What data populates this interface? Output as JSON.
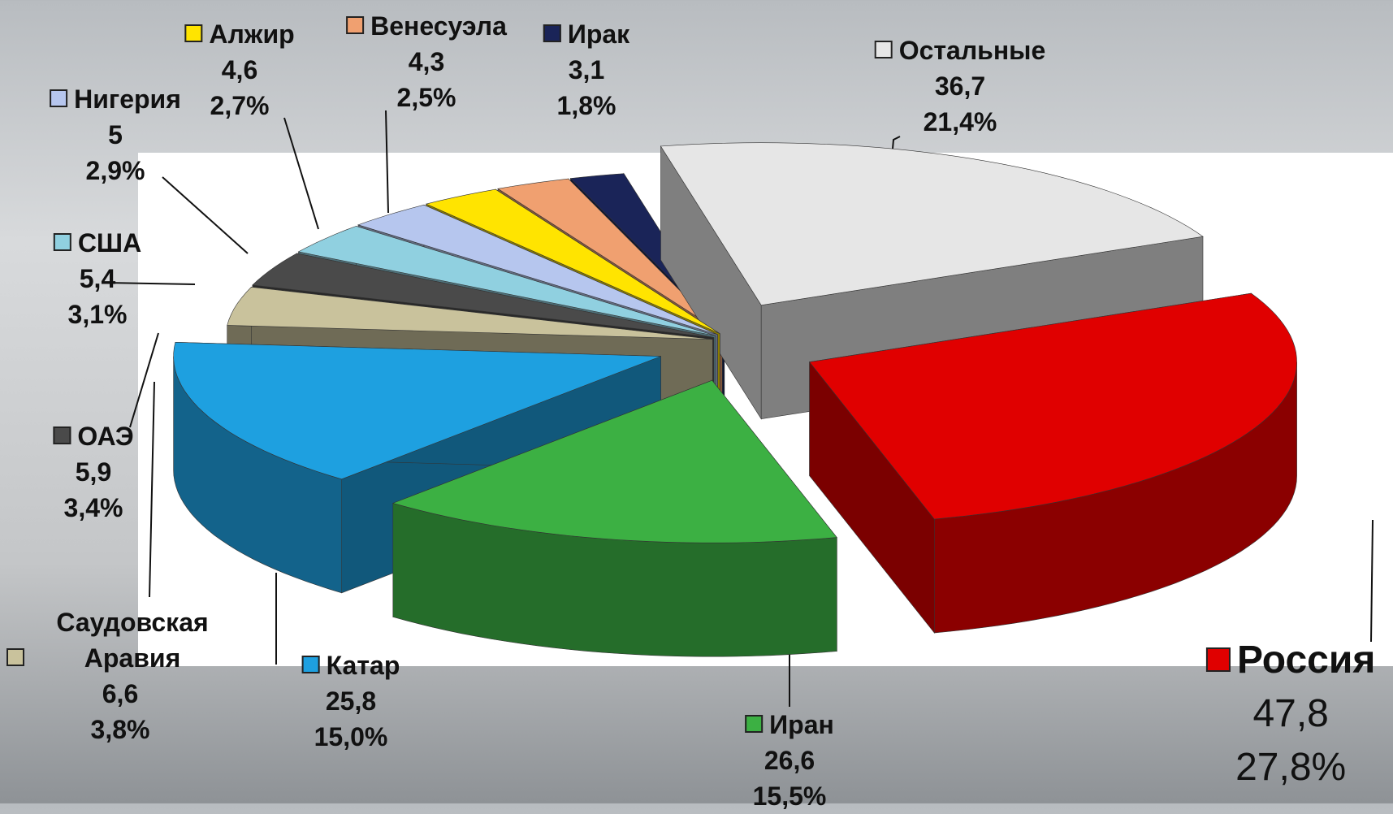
{
  "chart_data": {
    "type": "pie",
    "categories": [
      "Россия",
      "Иран",
      "Катар",
      "Саудовская Аравия",
      "ОАЭ",
      "США",
      "Нигерия",
      "Алжир",
      "Венесуэла",
      "Ирак",
      "Остальные"
    ],
    "values": [
      47.8,
      26.6,
      25.8,
      6.6,
      5.9,
      5.4,
      5,
      4.6,
      4.3,
      3.1,
      36.7
    ],
    "value_labels": [
      "47,8",
      "26,6",
      "25,8",
      "6,6",
      "5,9",
      "5,4",
      "5",
      "4,6",
      "4,3",
      "3,1",
      "36,7"
    ],
    "percents": [
      27.8,
      15.5,
      15.0,
      3.8,
      3.4,
      3.1,
      2.9,
      2.7,
      2.5,
      1.8,
      21.4
    ],
    "percent_labels": [
      "27,8%",
      "15,5%",
      "15,0%",
      "3,8%",
      "3,4%",
      "3,1%",
      "2,9%",
      "2,7%",
      "2,5%",
      "1,8%",
      "21,4%"
    ],
    "colors": [
      "#e00000",
      "#3cb043",
      "#1ea0e0",
      "#c9c29c",
      "#4a4a4a",
      "#90d0e0",
      "#b6c6ee",
      "#ffe400",
      "#f0a070",
      "#1a2458",
      "#e6e6e6"
    ]
  }
}
